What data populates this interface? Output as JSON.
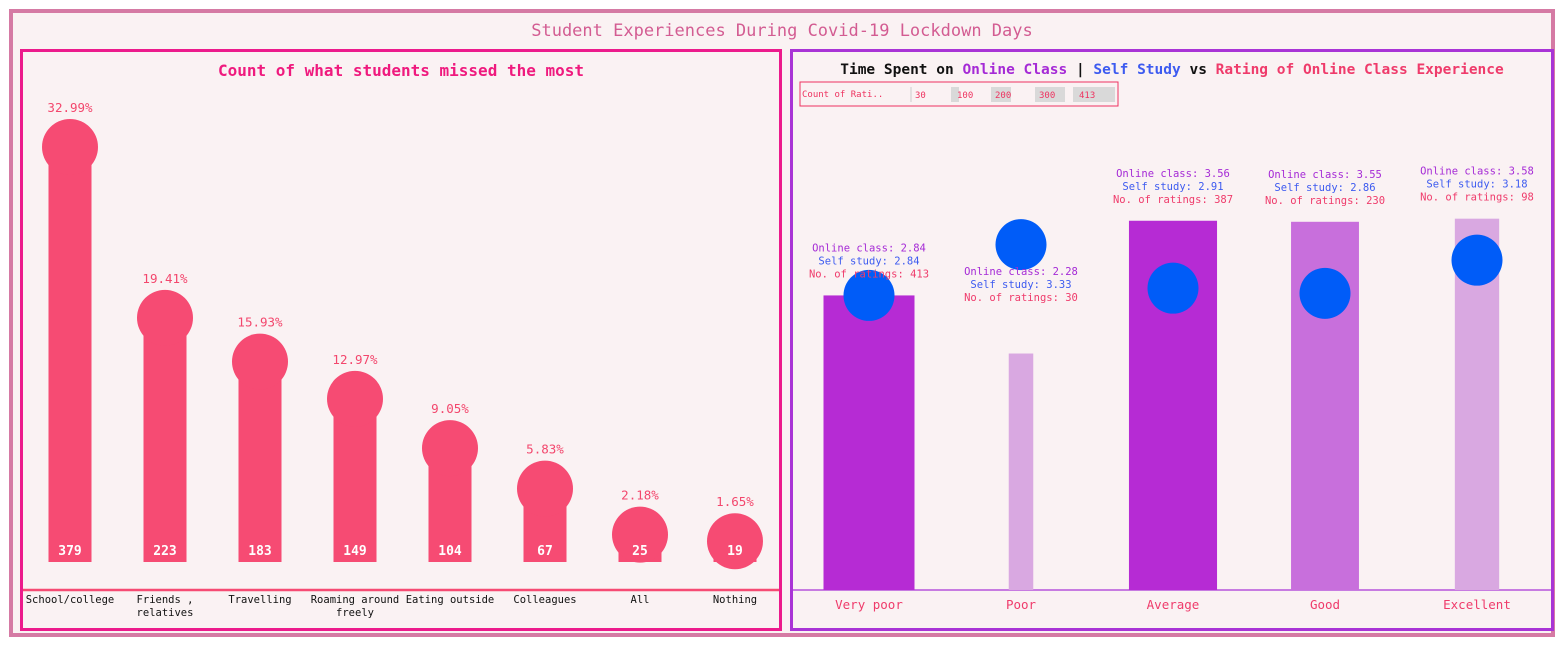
{
  "dashboard_title": "Student Experiences During Covid-19 Lockdown Days",
  "colors": {
    "frame": "#d57aa4",
    "background": "#faf2f3",
    "left_border": "#ec1b8c",
    "right_border": "#a934d6",
    "lollipop": "#f64b73",
    "online_class": "#a52ad6",
    "self_study": "#005cf8",
    "ratings": "#ef3b6b",
    "bar_dark": "#b62bd4",
    "bar_light": "#d9a8e1"
  },
  "chart_data": [
    {
      "type": "bar",
      "style": "lollipop",
      "title": "Count of what students missed the most",
      "categories": [
        "School/college",
        "Friends , relatives",
        "Travelling",
        "Roaming around freely",
        "Eating outside",
        "Colleagues",
        "All",
        "Nothing"
      ],
      "category_lines": [
        [
          "School/college"
        ],
        [
          "Friends ,",
          "relatives"
        ],
        [
          "Travelling"
        ],
        [
          "Roaming around",
          "freely"
        ],
        [
          "Eating outside"
        ],
        [
          "Colleagues"
        ],
        [
          "All"
        ],
        [
          "Nothing"
        ]
      ],
      "values": [
        379,
        223,
        183,
        149,
        104,
        67,
        25,
        19
      ],
      "percent_labels": [
        "32.99%",
        "19.41%",
        "15.93%",
        "12.97%",
        "9.05%",
        "5.83%",
        "2.18%",
        "1.65%"
      ],
      "ylim": [
        0,
        379
      ],
      "xlabel": "",
      "ylabel": ""
    },
    {
      "type": "bar",
      "title_parts": [
        {
          "text": "Time Spent on ",
          "color": "#111111"
        },
        {
          "text": "Online Class",
          "color": "#a52ad6"
        },
        {
          "text": " | ",
          "color": "#111111"
        },
        {
          "text": "Self Study",
          "color": "#3d5bf0"
        },
        {
          "text": " vs ",
          "color": "#111111"
        },
        {
          "text": "Rating of Online Class Experience",
          "color": "#ef3b6b"
        }
      ],
      "categories": [
        "Very poor",
        "Poor",
        "Average",
        "Good",
        "Excellent"
      ],
      "series": [
        {
          "name": "Online class",
          "values": [
            2.84,
            2.28,
            3.56,
            3.55,
            3.58
          ]
        },
        {
          "name": "Self study",
          "values": [
            2.84,
            3.33,
            2.91,
            2.86,
            3.18
          ]
        },
        {
          "name": "No. of ratings",
          "values": [
            413,
            30,
            387,
            230,
            98
          ]
        }
      ],
      "annotation_prefixes": {
        "online": "Online class: ",
        "self": "Self study: ",
        "ratings": "No. of ratings: "
      },
      "ylim": [
        0,
        4.3
      ],
      "legend": {
        "title": "Count of Rati..",
        "ticks": [
          "30",
          "100",
          "200",
          "300",
          "413"
        ],
        "placement": "top-left"
      }
    }
  ]
}
